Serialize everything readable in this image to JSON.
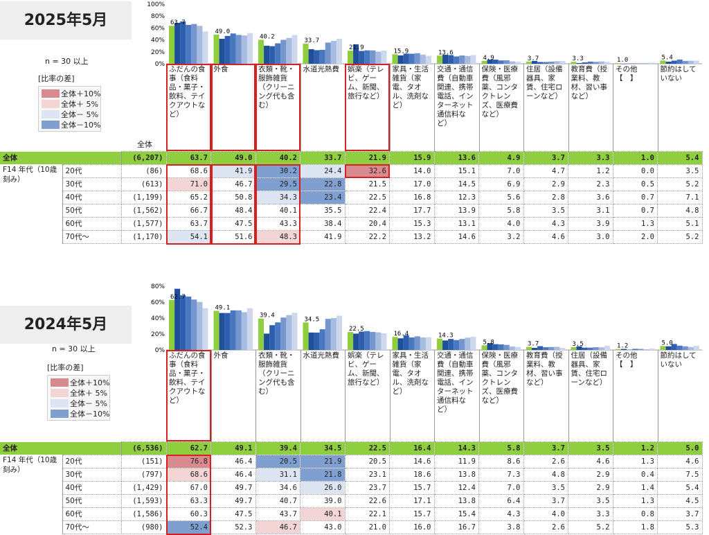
{
  "legend_colors": {
    "total": "#8fce3e",
    "ages": [
      "#1f4e9a",
      "#2e5fae",
      "#4a78c0",
      "#7595cf",
      "#a8bce0",
      "#cdd8ee"
    ],
    "plus10": "#d98a8e",
    "plus5": "#f4d5d6",
    "minus5": "#dde5f2",
    "minus10": "#7f9fd1"
  },
  "common": {
    "n_label": "n = 30 以上",
    "legend_title": "[比率の差]",
    "legend_items": [
      "全体＋10%",
      "全体＋ 5%",
      "全体－ 5%",
      "全体－10%"
    ],
    "total_row_label": "全体",
    "age_groups": [
      "20代",
      "30代",
      "40代",
      "50代",
      "60代",
      "70代～"
    ],
    "header_total": "全体"
  },
  "chart_data": [
    {
      "type": "bar",
      "title": "2025年5月",
      "segment_label": "F14 年代（10歳刻み）",
      "y_ticks": [
        "100%",
        "80%",
        "60%",
        "40%",
        "20%",
        "0%"
      ],
      "ylim": [
        0,
        100
      ],
      "categories": [
        "ふだんの食事（食料品・菓子・飲料、テイクアウトなど）",
        "外食",
        "衣類・靴・服飾雑貨（クリーニング代も含む）",
        "水道光熱費",
        "娯楽（テレビ、ゲーム、新聞、旅行など）",
        "家具・生活雑貨（家電、タオル、洗剤など）",
        "交通・通信費（自動車関連、携帯電話、インターネット通信料など）",
        "保険・医療費（風邪薬、コンタクトレンズ、医療費など）",
        "住居（設備器具、家賃、住宅ローンなど）",
        "教育費（授業料、教材、習い事など）",
        "その他【　】",
        "節約はしていない"
      ],
      "total_n": "(6,207)",
      "total_labels": [
        "63.7",
        "49.0",
        "40.2",
        "33.7",
        "21.9",
        "15.9",
        "13.6",
        "4.9",
        "3.7",
        "3.3",
        "1.0",
        "5.4"
      ],
      "total": [
        63.7,
        49.0,
        40.2,
        33.7,
        21.9,
        15.9,
        13.6,
        4.9,
        3.7,
        3.3,
        1.0,
        5.4
      ],
      "rows": [
        {
          "n": "(86)",
          "values": [
            "68.6",
            "41.9",
            "30.2",
            "24.4",
            "32.6",
            "14.0",
            "15.1",
            "7.0",
            "4.7",
            "1.2",
            "0.0",
            "3.5"
          ],
          "colors": [
            "",
            "minus5",
            "minus10",
            "minus5",
            "plus10",
            "",
            "",
            "",
            "",
            "",
            "",
            ""
          ]
        },
        {
          "n": "(613)",
          "values": [
            "71.0",
            "46.7",
            "29.5",
            "22.8",
            "21.5",
            "17.0",
            "14.5",
            "6.9",
            "2.9",
            "2.3",
            "0.5",
            "5.2"
          ],
          "colors": [
            "plus5",
            "",
            "minus10",
            "minus10",
            "",
            "",
            "",
            "",
            "",
            "",
            "",
            ""
          ]
        },
        {
          "n": "(1,199)",
          "values": [
            "65.2",
            "50.8",
            "34.3",
            "23.4",
            "22.5",
            "16.8",
            "12.3",
            "5.6",
            "2.8",
            "3.6",
            "0.7",
            "7.1"
          ],
          "colors": [
            "",
            "",
            "minus5",
            "minus10",
            "",
            "",
            "",
            "",
            "",
            "",
            "",
            ""
          ]
        },
        {
          "n": "(1,562)",
          "values": [
            "66.7",
            "48.4",
            "40.1",
            "35.5",
            "22.4",
            "17.7",
            "13.9",
            "5.8",
            "3.5",
            "3.1",
            "0.7",
            "4.8"
          ],
          "colors": [
            "",
            "",
            "",
            "",
            "",
            "",
            "",
            "",
            "",
            "",
            "",
            ""
          ]
        },
        {
          "n": "(1,577)",
          "values": [
            "63.7",
            "47.5",
            "43.3",
            "38.4",
            "20.4",
            "15.3",
            "13.1",
            "4.0",
            "4.3",
            "3.9",
            "1.3",
            "5.1"
          ],
          "colors": [
            "",
            "",
            "",
            "",
            "",
            "",
            "",
            "",
            "",
            "",
            "",
            ""
          ]
        },
        {
          "n": "(1,170)",
          "values": [
            "54.1",
            "51.6",
            "48.3",
            "41.9",
            "22.2",
            "13.2",
            "14.6",
            "3.2",
            "4.6",
            "3.0",
            "2.0",
            "5.2"
          ],
          "colors": [
            "minus5",
            "",
            "plus5",
            "",
            "",
            "",
            "",
            "",
            "",
            "",
            "",
            ""
          ]
        }
      ],
      "highlight_cols": [
        0,
        1,
        2,
        4
      ]
    },
    {
      "type": "bar",
      "title": "2024年5月",
      "segment_label": "F14 年代（10歳刻み）",
      "y_ticks": [
        "80%",
        "60%",
        "40%",
        "20%",
        "0%"
      ],
      "ylim": [
        0,
        80
      ],
      "categories": [
        "ふだんの食事（食料品・菓子・飲料、テイクアウトなど）",
        "外食",
        "衣類・靴・服飾雑貨（クリーニング代も含む）",
        "水道光熱費",
        "娯楽（テレビ、ゲーム、新聞、旅行など）",
        "家具・生活雑貨（家電、タオル、洗剤など）",
        "交通・通信費（自動車関連、携帯電話、インターネット通信料など）",
        "保険・医療費（風邪薬、コンタクトレンズ、医療費など）",
        "教育費（授業料、教材、習い事など）",
        "住居（設備器具、家賃、住宅ローンなど）",
        "その他【　】",
        "節約はしていない"
      ],
      "total_n": "(6,536)",
      "total_labels": [
        "62.7",
        "49.1",
        "39.4",
        "34.5",
        "22.5",
        "16.4",
        "14.3",
        "5.8",
        "3.7",
        "3.5",
        "1.2",
        "5.0"
      ],
      "total": [
        62.7,
        49.1,
        39.4,
        34.5,
        22.5,
        16.4,
        14.3,
        5.8,
        3.7,
        3.5,
        1.2,
        5.0
      ],
      "rows": [
        {
          "n": "(151)",
          "values": [
            "76.8",
            "46.4",
            "20.5",
            "21.9",
            "20.5",
            "14.6",
            "11.9",
            "8.6",
            "2.6",
            "4.6",
            "1.3",
            "4.6"
          ],
          "colors": [
            "plus10",
            "",
            "minus10",
            "minus10",
            "",
            "",
            "",
            "",
            "",
            "",
            "",
            ""
          ]
        },
        {
          "n": "(797)",
          "values": [
            "68.6",
            "46.4",
            "31.1",
            "21.8",
            "23.1",
            "18.6",
            "13.8",
            "7.3",
            "4.8",
            "2.9",
            "0.4",
            "7.5"
          ],
          "colors": [
            "plus5",
            "",
            "minus5",
            "minus10",
            "",
            "",
            "",
            "",
            "",
            "",
            "",
            ""
          ]
        },
        {
          "n": "(1,429)",
          "values": [
            "67.0",
            "49.7",
            "34.6",
            "26.0",
            "23.7",
            "15.7",
            "12.4",
            "7.0",
            "3.5",
            "2.9",
            "1.4",
            "5.4"
          ],
          "colors": [
            "",
            "",
            "",
            "minus5",
            "",
            "",
            "",
            "",
            "",
            "",
            "",
            ""
          ]
        },
        {
          "n": "(1,593)",
          "values": [
            "63.3",
            "49.7",
            "40.7",
            "39.0",
            "22.6",
            "17.1",
            "13.8",
            "6.4",
            "3.7",
            "3.5",
            "1.3",
            "4.5"
          ],
          "colors": [
            "",
            "",
            "",
            "",
            "",
            "",
            "",
            "",
            "",
            "",
            "",
            ""
          ]
        },
        {
          "n": "(1,586)",
          "values": [
            "60.3",
            "47.5",
            "43.7",
            "40.1",
            "22.1",
            "15.7",
            "15.4",
            "4.3",
            "4.0",
            "3.3",
            "0.8",
            "3.7"
          ],
          "colors": [
            "",
            "",
            "",
            "plus5",
            "",
            "",
            "",
            "",
            "",
            "",
            "",
            ""
          ]
        },
        {
          "n": "(980)",
          "values": [
            "52.4",
            "52.3",
            "46.7",
            "43.0",
            "21.0",
            "16.0",
            "16.7",
            "3.8",
            "2.6",
            "5.2",
            "1.8",
            "5.3"
          ],
          "colors": [
            "minus10",
            "",
            "plus5",
            "",
            "",
            "",
            "",
            "",
            "",
            "",
            "",
            ""
          ]
        }
      ],
      "highlight_cols": [
        0
      ]
    }
  ]
}
